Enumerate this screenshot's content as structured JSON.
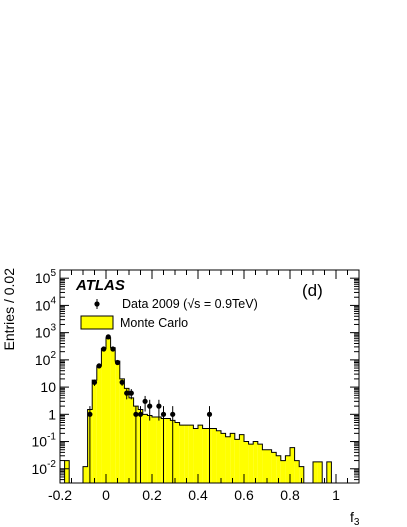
{
  "chart_data": {
    "type": "histogram",
    "experiment_label": "ATLAS",
    "panel_label": "(d)",
    "xlabel": "f",
    "xlabel_subscript": "3",
    "ylabel": "Entries / 0.02",
    "xlim": [
      -0.2,
      1.1
    ],
    "ylim": [
      0.003,
      200000
    ],
    "yscale": "log",
    "bin_width": 0.02,
    "x_ticks": [
      "-0.2",
      "0",
      "0.2",
      "0.4",
      "0.6",
      "0.8",
      "1"
    ],
    "y_ticks": [
      {
        "base": "10",
        "exp": "-2"
      },
      {
        "base": "10",
        "exp": "-1"
      },
      {
        "base": "1",
        "exp": ""
      },
      {
        "base": "10",
        "exp": ""
      },
      {
        "base": "10",
        "exp": "2"
      },
      {
        "base": "10",
        "exp": "3"
      },
      {
        "base": "10",
        "exp": "4"
      },
      {
        "base": "10",
        "exp": "5"
      }
    ],
    "legend_position": "top-left",
    "series": [
      {
        "name": "Monte Carlo",
        "kind": "filled-histogram",
        "color": "#ffff00",
        "bin_lows": [
          -0.18,
          -0.16,
          -0.14,
          -0.12,
          -0.1,
          -0.08,
          -0.06,
          -0.04,
          -0.02,
          0.0,
          0.02,
          0.04,
          0.06,
          0.08,
          0.1,
          0.12,
          0.14,
          0.16,
          0.18,
          0.2,
          0.22,
          0.24,
          0.26,
          0.28,
          0.3,
          0.32,
          0.34,
          0.36,
          0.38,
          0.4,
          0.42,
          0.44,
          0.46,
          0.48,
          0.5,
          0.52,
          0.54,
          0.56,
          0.58,
          0.6,
          0.62,
          0.64,
          0.66,
          0.68,
          0.7,
          0.72,
          0.74,
          0.76,
          0.78,
          0.8,
          0.82,
          0.84,
          0.86,
          0.88,
          0.9,
          0.92,
          0.94,
          0.96
        ],
        "values": [
          0.02,
          0,
          0,
          0,
          0.012,
          1.5,
          18,
          60,
          260,
          650,
          280,
          90,
          20,
          9,
          4,
          2,
          1.5,
          1.0,
          0.9,
          0.8,
          0.8,
          0.7,
          0.7,
          0.6,
          0.5,
          0.4,
          0.4,
          0.4,
          0.3,
          0.4,
          0.3,
          0.3,
          0.3,
          0.25,
          0.2,
          0.15,
          0.2,
          0.12,
          0.18,
          0.1,
          0.08,
          0.1,
          0.08,
          0.05,
          0.05,
          0.04,
          0.03,
          0.02,
          0.03,
          0.06,
          0.02,
          0.012,
          0,
          0,
          0.018,
          0.018,
          0,
          0.018
        ]
      },
      {
        "name": "Data 2009 (√s = 0.9TeV)",
        "kind": "points-with-errors",
        "color": "#000000",
        "x": [
          -0.07,
          -0.05,
          -0.03,
          -0.01,
          0.01,
          0.03,
          0.05,
          0.07,
          0.09,
          0.11,
          0.13,
          0.15,
          0.17,
          0.19,
          0.23,
          0.25,
          0.29,
          0.45
        ],
        "y": [
          1.0,
          15,
          60,
          250,
          700,
          250,
          80,
          15,
          6,
          6,
          1.0,
          1.0,
          3,
          2,
          2,
          1.0,
          1.0,
          1.0
        ]
      }
    ]
  }
}
